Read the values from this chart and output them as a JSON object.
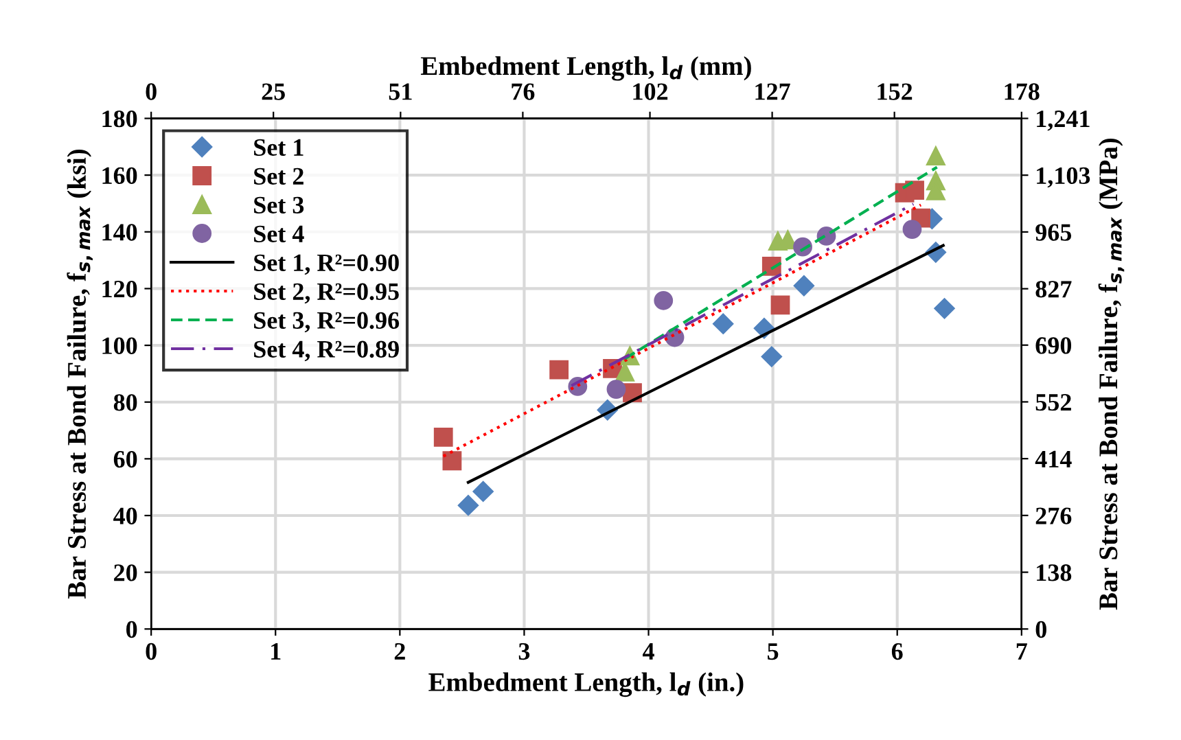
{
  "chart_data": {
    "type": "scatter",
    "xlabel": "Embedment Length, l$_{d}$ (in.)",
    "x2label": "Embedment Length, l$_{d}$ (mm)",
    "ylabel": "Bar Stress at Bond Failure, f$_{s,max}$ (ksi)",
    "y2label": "Bar Stress at Bond Failure, f$_{s,max}$ (MPa)",
    "xlim": [
      0,
      7
    ],
    "xticks": [
      0,
      1,
      2,
      3,
      4,
      5,
      6,
      7
    ],
    "ylim": [
      0,
      180
    ],
    "yticks": [
      0,
      20,
      40,
      60,
      80,
      100,
      120,
      140,
      160,
      180
    ],
    "x2lim": [
      0,
      178
    ],
    "x2ticks": [
      0,
      25,
      51,
      76,
      102,
      127,
      152,
      178
    ],
    "y2lim": [
      0,
      1241
    ],
    "y2ticks": [
      0,
      138,
      276,
      414,
      552,
      690,
      827,
      965,
      {
        "value": 1103,
        "label": "1,103"
      },
      {
        "value": 1241,
        "label": "1,241"
      }
    ],
    "grid": true,
    "legend": "top left",
    "series": [
      {
        "name": "Set 1",
        "marker": "diamond",
        "color": "#4f81bd",
        "x": [
          2.55,
          2.67,
          3.67,
          4.6,
          4.93,
          4.99,
          5.25,
          6.28,
          6.31,
          6.38
        ],
        "values": [
          43.6,
          48.5,
          77.2,
          107.6,
          106.0,
          96.0,
          121.0,
          144.6,
          132.8,
          113.0
        ]
      },
      {
        "name": "Set 2",
        "marker": "square",
        "color": "#c0504d",
        "x": [
          2.35,
          2.42,
          3.28,
          3.71,
          3.87,
          5.06,
          4.99,
          6.06,
          6.14,
          6.19
        ],
        "values": [
          67.6,
          59.3,
          91.4,
          91.8,
          83.3,
          114.2,
          127.9,
          153.8,
          154.7,
          144.9
        ]
      },
      {
        "name": "Set 3",
        "marker": "triangle",
        "color": "#9bbb59",
        "x": [
          3.85,
          3.81,
          5.04,
          5.12,
          6.31,
          6.31,
          6.31
        ],
        "values": [
          96.3,
          90.6,
          136.8,
          137.2,
          166.8,
          158.0,
          154.5
        ]
      },
      {
        "name": "Set 4",
        "marker": "circle",
        "color": "#8064a2",
        "x": [
          3.43,
          3.74,
          4.12,
          4.21,
          5.24,
          5.43,
          6.12
        ],
        "values": [
          85.5,
          84.5,
          115.8,
          102.8,
          134.7,
          138.5,
          140.9
        ]
      },
      {
        "name": "Set 1, R²=0.90",
        "type": "line",
        "line_style": "solid",
        "color": "#000000",
        "x": [
          2.55,
          6.37
        ],
        "values": [
          51.7,
          135.2
        ]
      },
      {
        "name": "Set 2, R²=0.95",
        "type": "line",
        "line_style": "dotted",
        "color": "#ff0000",
        "x": [
          2.35,
          6.19
        ],
        "values": [
          60.9,
          149.5
        ]
      },
      {
        "name": "Set 3, R²=0.96",
        "type": "line",
        "line_style": "dashed",
        "color": "#00b050",
        "x": [
          3.81,
          6.32
        ],
        "values": [
          95.3,
          162.8
        ]
      },
      {
        "name": "Set 4, R²=0.89",
        "type": "line",
        "line_style": "dashdot",
        "color": "#7030a0",
        "x": [
          3.38,
          6.13
        ],
        "values": [
          85.8,
          149.8
        ]
      }
    ]
  }
}
